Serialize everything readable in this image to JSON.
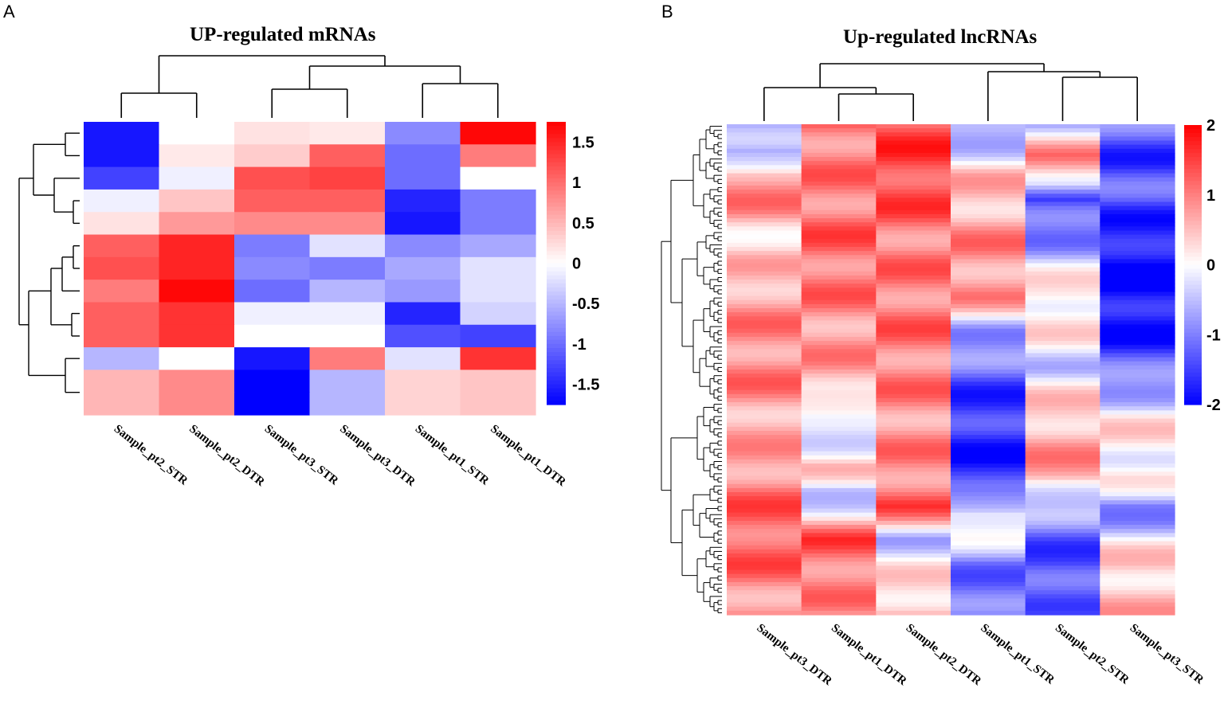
{
  "chart_data": [
    {
      "type": "heatmap",
      "panel": "A",
      "title": "UP-regulated mRNAs",
      "columns": [
        "Sample_pt2_STR",
        "Sample_pt2_DTR",
        "Sample_pt3_STR",
        "Sample_pt3_DTR",
        "Sample_pt1_STR",
        "Sample_pt1_DTR"
      ],
      "values": [
        [
          -1.6,
          0.0,
          0.2,
          0.15,
          -0.8,
          1.7
        ],
        [
          -1.6,
          0.15,
          0.35,
          1.1,
          -1.0,
          0.9
        ],
        [
          -1.3,
          -0.1,
          1.2,
          1.3,
          -1.0,
          0.0
        ],
        [
          -0.1,
          0.4,
          1.1,
          1.1,
          -1.5,
          -0.9
        ],
        [
          0.2,
          0.7,
          0.8,
          0.8,
          -1.6,
          -0.9
        ],
        [
          1.1,
          1.5,
          -0.9,
          -0.2,
          -0.8,
          -0.6
        ],
        [
          1.2,
          1.5,
          -0.8,
          -0.9,
          -0.6,
          -0.2
        ],
        [
          0.9,
          1.7,
          -1.0,
          -0.5,
          -0.7,
          -0.2
        ],
        [
          1.1,
          1.4,
          -0.1,
          -0.1,
          -1.5,
          -0.3
        ],
        [
          1.1,
          1.4,
          0.0,
          0.0,
          -1.2,
          -1.3
        ],
        [
          -0.5,
          0.0,
          -1.6,
          0.9,
          -0.2,
          1.4
        ],
        [
          0.5,
          0.8,
          -1.8,
          -0.5,
          0.3,
          0.4
        ],
        [
          0.5,
          0.8,
          -1.8,
          -0.5,
          0.3,
          0.4
        ]
      ],
      "colorbar": {
        "ticks": [
          "1.5",
          "1",
          "0.5",
          "0",
          "-0.5",
          "-1",
          "-1.5"
        ],
        "range": [
          -1.75,
          1.75
        ],
        "low_color": "#0000ff",
        "mid_color": "#ffffff",
        "high_color": "#ff0000"
      }
    },
    {
      "type": "heatmap",
      "panel": "B",
      "title": "Up-regulated lncRNAs",
      "columns": [
        "Sample_pt3_DTR",
        "Sample_pt1_DTR",
        "Sample_pt2_DTR",
        "Sample_pt1_STR",
        "Sample_pt2_STR",
        "Sample_pt3_STR"
      ],
      "row_count": 120,
      "column_profiles": [
        [
          [
            0,
            -0.6
          ],
          [
            0.05,
            -0.9
          ],
          [
            0.1,
            0.9
          ],
          [
            0.18,
            0.8
          ],
          [
            0.25,
            0.2
          ],
          [
            0.35,
            0.8
          ],
          [
            0.5,
            1.0
          ],
          [
            0.65,
            0.6
          ],
          [
            0.75,
            1.1
          ],
          [
            0.85,
            1.3
          ],
          [
            1,
            0.8
          ]
        ],
        [
          [
            0,
            1.1
          ],
          [
            0.1,
            1.0
          ],
          [
            0.25,
            1.2
          ],
          [
            0.4,
            0.9
          ],
          [
            0.55,
            0.6
          ],
          [
            0.6,
            -0.6
          ],
          [
            0.7,
            0.5
          ],
          [
            0.75,
            -0.7
          ],
          [
            0.85,
            1.3
          ],
          [
            1,
            0.8
          ]
        ],
        [
          [
            0,
            1.4
          ],
          [
            0.1,
            1.5
          ],
          [
            0.25,
            1.0
          ],
          [
            0.4,
            1.1
          ],
          [
            0.6,
            0.9
          ],
          [
            0.7,
            0.9
          ],
          [
            0.78,
            1.3
          ],
          [
            0.85,
            -0.4
          ],
          [
            1,
            0.7
          ]
        ],
        [
          [
            0,
            -0.9
          ],
          [
            0.1,
            0.4
          ],
          [
            0.25,
            0.9
          ],
          [
            0.35,
            0.8
          ],
          [
            0.42,
            -0.6
          ],
          [
            0.5,
            -1.2
          ],
          [
            0.58,
            -1.6
          ],
          [
            0.72,
            -1.7
          ],
          [
            0.75,
            -1.4
          ],
          [
            0.8,
            0.3
          ],
          [
            0.9,
            -1.0
          ],
          [
            1,
            -1.2
          ]
        ],
        [
          [
            0,
            -0.2
          ],
          [
            0.06,
            0.8
          ],
          [
            0.12,
            0.2
          ],
          [
            0.15,
            -1.6
          ],
          [
            0.25,
            -0.7
          ],
          [
            0.35,
            0.4
          ],
          [
            0.5,
            -0.3
          ],
          [
            0.6,
            0.6
          ],
          [
            0.72,
            0.8
          ],
          [
            0.78,
            -0.7
          ],
          [
            0.9,
            -1.5
          ],
          [
            1,
            -1.1
          ]
        ],
        [
          [
            0,
            -1.2
          ],
          [
            0.08,
            -1.5
          ],
          [
            0.15,
            -1.3
          ],
          [
            0.25,
            -1.9
          ],
          [
            0.4,
            -1.9
          ],
          [
            0.5,
            -1.2
          ],
          [
            0.6,
            0.1
          ],
          [
            0.72,
            0.2
          ],
          [
            0.78,
            -1.0
          ],
          [
            0.85,
            -0.2
          ],
          [
            0.9,
            0.5
          ],
          [
            1,
            0.5
          ]
        ]
      ],
      "colorbar": {
        "ticks": [
          "2",
          "1",
          "0",
          "-1",
          "-2"
        ],
        "range": [
          -2,
          2
        ],
        "low_color": "#0000ff",
        "mid_color": "#ffffff",
        "high_color": "#ff0000"
      }
    }
  ],
  "labels": {
    "panel_a": "A",
    "panel_b": "B",
    "title_a": "UP-regulated mRNAs",
    "title_b": "Up-regulated lncRNAs"
  }
}
